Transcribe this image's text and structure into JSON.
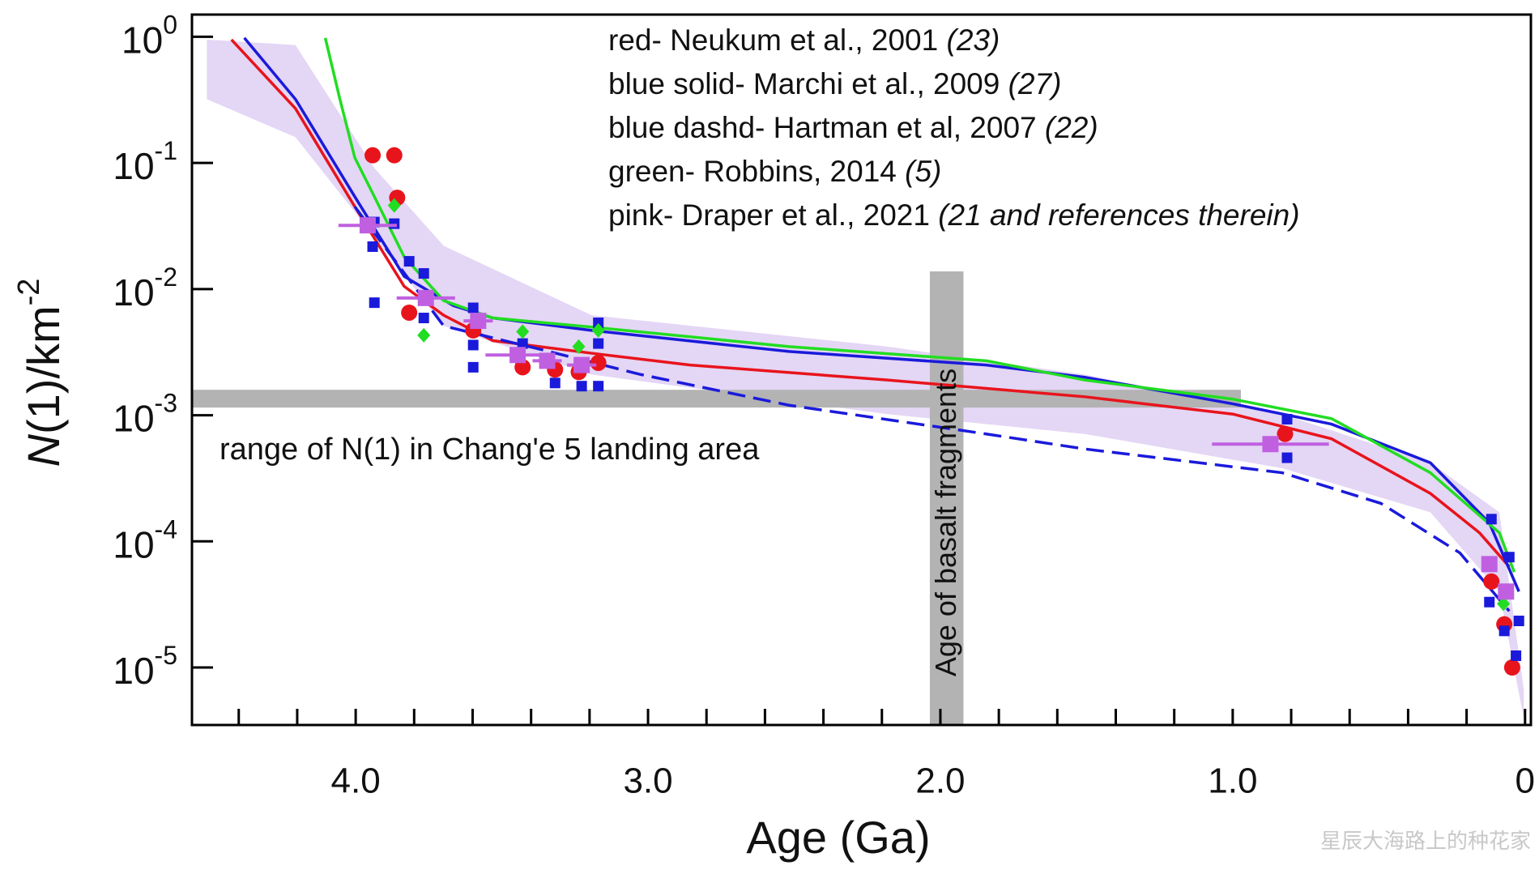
{
  "chart_data": {
    "type": "line",
    "xlabel": "Age (Ga)",
    "ylabel": [
      "N",
      "(1)/km",
      "-2"
    ],
    "xlim": [
      4.56,
      -0.02
    ],
    "ylim": [
      3.5e-06,
      1.5
    ],
    "log_y": true,
    "xticks": [
      {
        "value": 4,
        "label": "4.0"
      },
      {
        "value": 3,
        "label": "3.0"
      },
      {
        "value": 2,
        "label": "2.0"
      },
      {
        "value": 1,
        "label": "1.0"
      },
      0
    ],
    "xminorticks": [
      4.4,
      4.2,
      3.8,
      3.6,
      3.4,
      3.2,
      2.8,
      2.6,
      2.4,
      2.2,
      1.8,
      1.6,
      1.4,
      1.2,
      0.8,
      0.6,
      0.4,
      0.2
    ],
    "yticks": [
      {
        "value": 1,
        "label": "10",
        "exponent": "0"
      },
      {
        "value": 0.1,
        "label": "10",
        "exponent": "-1"
      },
      {
        "value": 0.01,
        "label": "10",
        "exponent": "-2"
      },
      {
        "value": 0.001,
        "label": "10",
        "exponent": "-3"
      },
      {
        "value": 0.0001,
        "label": "10",
        "exponent": "-4"
      },
      {
        "value": 1e-05,
        "label": "10",
        "exponent": "-5"
      }
    ],
    "series": [
      {
        "name": "red- Neukum et al., 2001",
        "ref": "(23)",
        "color": "#e8141c",
        "dash": false,
        "x": [
          4.425,
          4.206,
          4.003,
          3.834,
          3.699,
          3.531,
          3.193,
          2.856,
          2.181,
          1.506,
          0.999,
          0.662,
          0.324,
          0.156,
          0.054
        ],
        "y": [
          0.95,
          0.27,
          0.045,
          0.0105,
          0.0062,
          0.0039,
          0.0031,
          0.0025,
          0.0019,
          0.0014,
          0.00102,
          0.00065,
          0.00024,
          0.000117,
          6.3e-05
        ]
      },
      {
        "name": "blue solid- Marchi et al., 2009",
        "ref": "(27)",
        "color": "#1a1adb",
        "dash": false,
        "x": [
          4.381,
          4.206,
          4.003,
          3.834,
          3.666,
          3.531,
          3.193,
          2.518,
          1.843,
          1.506,
          0.999,
          0.662,
          0.324,
          0.122,
          0.021
        ],
        "y": [
          0.98,
          0.32,
          0.054,
          0.0126,
          0.0074,
          0.0059,
          0.0047,
          0.0032,
          0.0025,
          0.002,
          0.00123,
          0.00085,
          0.00042,
          0.00014,
          4e-05
        ]
      },
      {
        "name": "blue dashd- Hartman et al, 2007",
        "ref": "(22)",
        "color": "#1a1adb",
        "dash": true,
        "x": [
          4.003,
          3.699,
          3.362,
          3.024,
          2.518,
          1.843,
          1.506,
          0.831,
          0.493,
          0.223,
          0.054
        ],
        "y": [
          0.045,
          0.0051,
          0.0033,
          0.0021,
          0.0012,
          0.00071,
          0.00054,
          0.00035,
          0.0002,
          8.1e-05,
          2.8e-05
        ]
      },
      {
        "name": "green- Robbins, 2014",
        "ref": "(5)",
        "color": "#22dd22",
        "dash": false,
        "x": [
          4.104,
          4.054,
          4.003,
          3.936,
          3.834,
          3.699,
          3.531,
          3.193,
          2.518,
          1.843,
          1.506,
          0.999,
          0.662,
          0.324,
          0.088,
          0.037
        ],
        "y": [
          0.98,
          0.32,
          0.11,
          0.054,
          0.018,
          0.0081,
          0.0059,
          0.005,
          0.0035,
          0.0027,
          0.0019,
          0.00134,
          0.00094,
          0.00035,
          0.000117,
          5.7e-05
        ]
      }
    ],
    "band": {
      "name": "pink- Draper et al., 2021",
      "ref": "(21 and references therein)",
      "color": "#e4d6f5",
      "x": [
        4.509,
        4.206,
        3.936,
        3.699,
        3.193,
        2.181,
        1.506,
        0.831,
        0.324,
        0.088,
        0.004
      ],
      "upper": [
        0.95,
        0.86,
        0.091,
        0.022,
        0.0062,
        0.0035,
        0.0021,
        0.00102,
        0.00042,
        0.00017,
        6.6e-06
      ],
      "lower": [
        0.32,
        0.16,
        0.026,
        0.0051,
        0.0021,
        0.00102,
        0.00071,
        0.00038,
        0.00017,
        4e-05,
        3.9e-06
      ]
    },
    "highlights": [
      {
        "color": "#b3b3b3",
        "x": [
          4.56,
          0.972
        ],
        "y": [
          0.00115,
          0.00159
        ],
        "label": "range of N(1) in Chang'e 5 landing area"
      },
      {
        "color": "#b3b3b3",
        "x": [
          2.036,
          1.921
        ],
        "y": [
          3.5e-06,
          0.0138
        ],
        "label": "Age of basalt fragments"
      }
    ],
    "points": [
      {
        "color": "#e8141c",
        "marker": "circle",
        "x": [
          3.942,
          3.868,
          3.858,
          3.817,
          3.598,
          3.429,
          3.318,
          3.237,
          3.17,
          0.821,
          0.115,
          0.071,
          0.044
        ],
        "y": [
          0.115,
          0.115,
          0.053,
          0.0065,
          0.0047,
          0.0024,
          0.0023,
          0.0022,
          0.0026,
          0.00071,
          4.8e-05,
          2.2e-05,
          1e-05
        ]
      },
      {
        "color": "#1a1adb",
        "marker": "square",
        "x": [
          3.936,
          3.868,
          3.942,
          3.936,
          3.817,
          3.767,
          3.767,
          3.598,
          3.598,
          3.598,
          3.429,
          3.318,
          3.227,
          3.17,
          3.17,
          3.17,
          0.814,
          0.814,
          0.115,
          0.122,
          0.071,
          0.054,
          0.021,
          0.031
        ],
        "y": [
          0.034,
          0.033,
          0.0217,
          0.0078,
          0.0166,
          0.0133,
          0.0059,
          0.0071,
          0.0036,
          0.0024,
          0.0037,
          0.0018,
          0.0017,
          0.0054,
          0.0037,
          0.0017,
          0.00093,
          0.00046,
          0.00015,
          3.3e-05,
          1.95e-05,
          7.5e-05,
          2.34e-05,
          1.24e-05
        ]
      },
      {
        "color": "#22dd22",
        "marker": "diamond",
        "x": [
          3.868,
          3.767,
          3.429,
          3.237,
          3.17,
          0.074
        ],
        "y": [
          0.046,
          0.0043,
          0.0046,
          0.0035,
          0.0047,
          3.2e-05
        ]
      },
      {
        "color": "#c060e0",
        "marker": "bigsquare",
        "x": [
          3.959,
          3.76,
          3.581,
          3.446,
          3.345,
          3.227,
          0.871,
          0.122,
          0.065
        ],
        "y": [
          0.032,
          0.0085,
          0.0056,
          0.003,
          0.0027,
          0.0025,
          0.00059,
          6.6e-05,
          4e-05
        ],
        "xerr": [
          0.1,
          0.1,
          0.05,
          0.11,
          0.05,
          0.05,
          0.2,
          0.01,
          0.01
        ]
      }
    ],
    "watermark": "星辰大海路上的种花家"
  }
}
